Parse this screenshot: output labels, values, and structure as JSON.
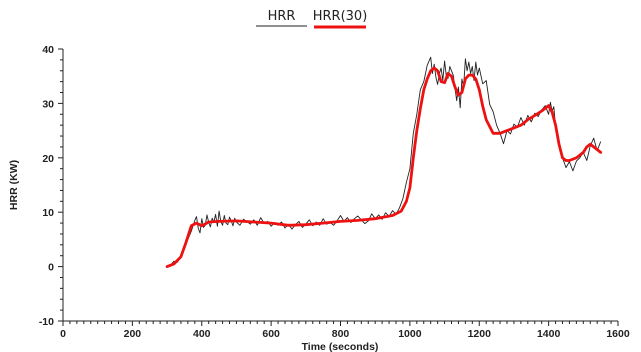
{
  "chart_data": {
    "type": "line",
    "title": "",
    "xlabel": "Time (seconds)",
    "ylabel": "HRR (KW)",
    "xlim": [
      0,
      1600
    ],
    "ylim": [
      -10,
      40
    ],
    "x_ticks": [
      0,
      200,
      400,
      600,
      800,
      1000,
      1200,
      1400,
      1600
    ],
    "y_ticks": [
      -10,
      0,
      10,
      20,
      30,
      40
    ],
    "grid": false,
    "legend_position": "top-center",
    "series": [
      {
        "name": "HRR",
        "color": "#222222",
        "style": "thin-noisy",
        "x": [
          300,
          310,
          320,
          330,
          340,
          350,
          360,
          370,
          380,
          385,
          390,
          395,
          400,
          405,
          410,
          415,
          420,
          425,
          430,
          435,
          440,
          445,
          450,
          455,
          460,
          465,
          470,
          475,
          480,
          485,
          490,
          495,
          500,
          510,
          520,
          530,
          540,
          550,
          560,
          570,
          580,
          590,
          600,
          610,
          620,
          630,
          640,
          650,
          660,
          670,
          680,
          690,
          700,
          710,
          720,
          730,
          740,
          750,
          760,
          770,
          780,
          790,
          800,
          810,
          820,
          830,
          840,
          850,
          860,
          870,
          880,
          890,
          900,
          910,
          920,
          930,
          940,
          950,
          960,
          970,
          980,
          990,
          1000,
          1010,
          1020,
          1030,
          1040,
          1050,
          1060,
          1065,
          1070,
          1075,
          1080,
          1085,
          1090,
          1095,
          1100,
          1105,
          1110,
          1115,
          1120,
          1125,
          1130,
          1135,
          1140,
          1145,
          1150,
          1155,
          1160,
          1165,
          1170,
          1175,
          1180,
          1185,
          1190,
          1195,
          1200,
          1210,
          1220,
          1230,
          1240,
          1250,
          1260,
          1270,
          1280,
          1290,
          1300,
          1310,
          1320,
          1330,
          1340,
          1350,
          1360,
          1370,
          1380,
          1390,
          1400,
          1405,
          1410,
          1415,
          1420,
          1430,
          1440,
          1450,
          1460,
          1470,
          1480,
          1490,
          1500,
          1510,
          1520,
          1530,
          1540,
          1550
        ],
        "values": [
          0,
          0.3,
          1,
          0.8,
          2,
          3.5,
          5,
          6.5,
          8.5,
          9.2,
          7,
          6.2,
          8.8,
          7.2,
          7.6,
          9.5,
          8.1,
          7.3,
          8.9,
          8.2,
          9.6,
          7.4,
          10.2,
          8.3,
          7.6,
          9.4,
          8.0,
          7.7,
          9.1,
          8.4,
          7.5,
          8.9,
          8.2,
          7.6,
          8.7,
          8.3,
          7.8,
          8.6,
          7.6,
          9.0,
          7.9,
          8.3,
          7.4,
          8.1,
          7.6,
          8.2,
          7.1,
          7.8,
          6.9,
          7.7,
          8.3,
          7.2,
          7.8,
          8.6,
          7.5,
          8.2,
          7.6,
          8.8,
          7.8,
          8.1,
          7.6,
          8.4,
          9.4,
          8.3,
          9.0,
          8.1,
          8.8,
          9.3,
          8.6,
          7.9,
          8.4,
          9.7,
          8.8,
          9.5,
          8.7,
          9.9,
          9.2,
          10.3,
          9.6,
          10.8,
          12.5,
          15.5,
          18.0,
          24.5,
          28.0,
          32.5,
          34.0,
          37.0,
          38.5,
          35.5,
          37.2,
          34.8,
          33.5,
          35.5,
          36.5,
          34.2,
          37.8,
          35.0,
          34.6,
          36.8,
          36.0,
          35.2,
          32.8,
          30.5,
          33.0,
          29.2,
          34.5,
          33.0,
          38.2,
          36.0,
          37.6,
          35.5,
          36.8,
          34.2,
          37.6,
          35.2,
          36.5,
          33.6,
          34.2,
          29.8,
          28.5,
          26.0,
          24.5,
          22.6,
          25.0,
          24.4,
          26.2,
          25.6,
          27.4,
          26.0,
          27.8,
          26.6,
          28.2,
          27.6,
          28.8,
          29.6,
          28.0,
          30.2,
          28.6,
          29.4,
          25.6,
          23.0,
          20.0,
          18.2,
          19.3,
          17.6,
          19.4,
          20.0,
          21.0,
          19.5,
          22.2,
          23.6,
          21.3,
          23.0
        ]
      },
      {
        "name": "HRR(30)",
        "color": "#ee1111",
        "style": "thick-smooth",
        "x": [
          300,
          320,
          340,
          355,
          370,
          385,
          400,
          420,
          450,
          500,
          550,
          600,
          650,
          700,
          750,
          800,
          850,
          900,
          950,
          975,
          990,
          1000,
          1010,
          1020,
          1030,
          1040,
          1050,
          1060,
          1070,
          1080,
          1090,
          1100,
          1110,
          1120,
          1130,
          1140,
          1150,
          1160,
          1170,
          1180,
          1190,
          1200,
          1210,
          1220,
          1240,
          1260,
          1280,
          1300,
          1320,
          1340,
          1360,
          1380,
          1400,
          1410,
          1420,
          1430,
          1440,
          1450,
          1460,
          1480,
          1500,
          1510,
          1520,
          1530,
          1540,
          1550
        ],
        "values": [
          0,
          0.5,
          1.8,
          4.5,
          7.5,
          8.0,
          7.5,
          8.2,
          8.3,
          8.4,
          8.2,
          8.0,
          7.6,
          7.7,
          8.0,
          8.3,
          8.5,
          8.8,
          9.4,
          10.2,
          12.0,
          14.5,
          20.0,
          25.0,
          29.0,
          32.5,
          34.5,
          36.0,
          36.5,
          36.0,
          34.0,
          33.8,
          35.5,
          35.0,
          33.0,
          31.5,
          32.0,
          34.5,
          35.2,
          35.2,
          34.5,
          32.5,
          29.5,
          27.0,
          24.5,
          24.5,
          25.0,
          25.5,
          26.0,
          27.0,
          27.8,
          28.6,
          29.6,
          28.4,
          26.0,
          22.5,
          20.0,
          19.5,
          19.5,
          20.0,
          21.0,
          22.0,
          22.5,
          22.0,
          21.5,
          21.0
        ]
      }
    ]
  }
}
